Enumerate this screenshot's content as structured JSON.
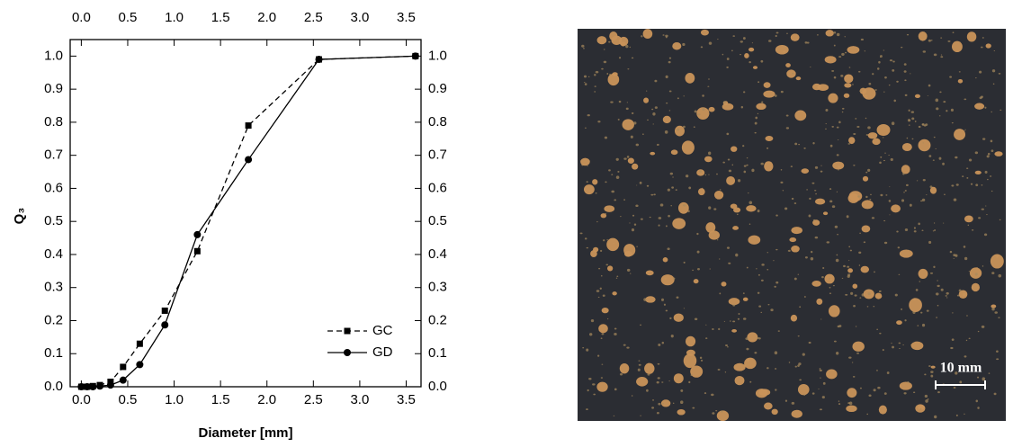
{
  "chart_data": {
    "type": "line",
    "x_label": "Diameter [mm]",
    "y_label": "Q₃",
    "x": [
      0.0,
      0.063,
      0.125,
      0.2,
      0.315,
      0.45,
      0.63,
      0.9,
      1.25,
      1.8,
      2.56,
      3.6
    ],
    "series": [
      {
        "name": "GC",
        "color": "#000000",
        "marker": "square",
        "dashed": true,
        "values": [
          0.0,
          0.0,
          0.002,
          0.005,
          0.015,
          0.06,
          0.13,
          0.23,
          0.41,
          0.79,
          0.99,
          1.0
        ]
      },
      {
        "name": "GD",
        "color": "#000000",
        "marker": "circle",
        "dashed": false,
        "values": [
          0.0,
          0.0,
          0.0,
          0.002,
          0.005,
          0.02,
          0.067,
          0.187,
          0.46,
          0.687,
          0.99,
          1.0
        ]
      }
    ],
    "xlim": [
      -0.12,
      3.66
    ],
    "ylim": [
      0,
      1.05
    ],
    "xticks": [
      {
        "value": 0,
        "label": "0.0"
      },
      0.5,
      {
        "value": 1,
        "label": "1.0"
      },
      1.5,
      {
        "value": 2,
        "label": "2.0"
      },
      2.5,
      {
        "value": 3,
        "label": "3.0"
      },
      3.5
    ],
    "yticks": [
      {
        "value": 0,
        "label": "0.0"
      },
      0.1,
      0.2,
      0.3,
      0.4,
      0.5,
      0.6,
      0.7,
      0.8,
      0.9,
      {
        "value": 1,
        "label": "1.0"
      }
    ],
    "mirror_axes": true,
    "legend": "lower right"
  },
  "image": {
    "scale_bar": "10 mm"
  }
}
